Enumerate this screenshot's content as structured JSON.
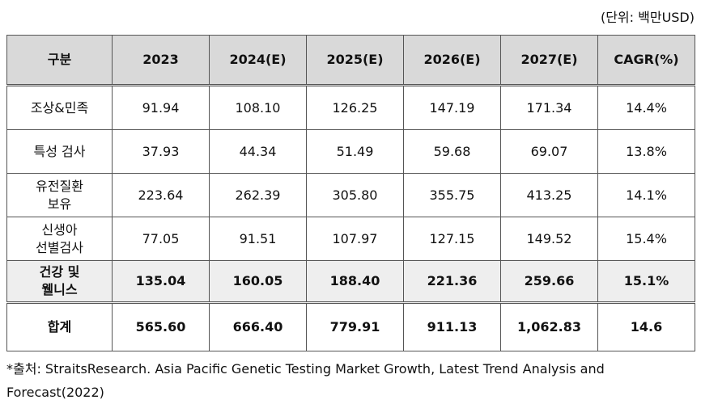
{
  "unit_note": "(단위: 백만USD)",
  "table": {
    "headers": [
      "구분",
      "2023",
      "2024(E)",
      "2025(E)",
      "2026(E)",
      "2027(E)",
      "CAGR(%)"
    ],
    "rows": [
      {
        "label": "조상&민족",
        "values": [
          "91.94",
          "108.10",
          "126.25",
          "147.19",
          "171.34",
          "14.4%"
        ]
      },
      {
        "label": "특성 검사",
        "values": [
          "37.93",
          "44.34",
          "51.49",
          "59.68",
          "69.07",
          "13.8%"
        ]
      },
      {
        "label": "유전질환\n보유",
        "values": [
          "223.64",
          "262.39",
          "305.80",
          "355.75",
          "413.25",
          "14.1%"
        ]
      },
      {
        "label": "신생아\n선별검사",
        "values": [
          "77.05",
          "91.51",
          "107.97",
          "127.15",
          "149.52",
          "15.4%"
        ]
      },
      {
        "label": "건강 및\n웰니스",
        "values": [
          "135.04",
          "160.05",
          "188.40",
          "221.36",
          "259.66",
          "15.1%"
        ]
      }
    ],
    "total": {
      "label": "합계",
      "values": [
        "565.60",
        "666.40",
        "779.91",
        "911.13",
        "1,062.83",
        "14.6"
      ]
    }
  },
  "source_note": "*출처: StraitsResearch. Asia Pacific Genetic Testing Market Growth, Latest Trend Analysis and Forecast(2022)"
}
